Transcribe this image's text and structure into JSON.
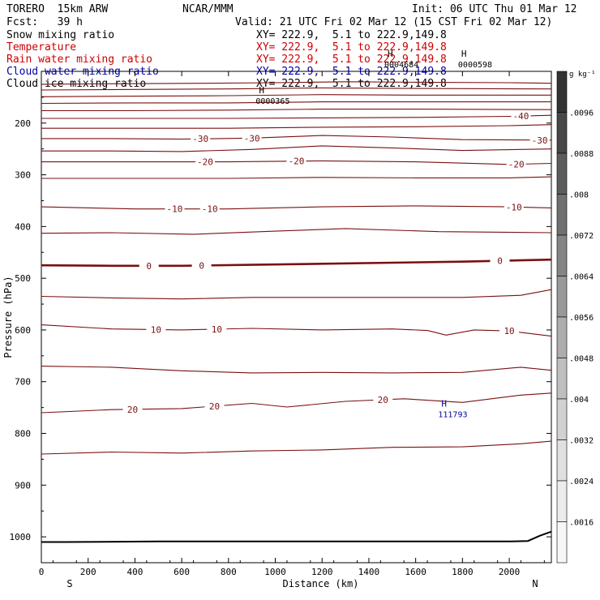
{
  "header": {
    "model": "TORERO  15km ARW",
    "org": "NCAR/MMM",
    "init": "Init: 06 UTC Thu 01 Mar 12",
    "fcst": "Fcst:   39 h",
    "valid": "Valid: 21 UTC Fri 02 Mar 12 (15 CST Fri 02 Mar 12)",
    "fields": [
      {
        "name": "Snow mixing ratio",
        "xy": "XY= 222.9,  5.1 to 222.9,149.8",
        "color": "#000000"
      },
      {
        "name": "Temperature",
        "xy": "XY= 222.9,  5.1 to 222.9,149.8",
        "color": "#cc0000"
      },
      {
        "name": "Rain water mixing ratio",
        "xy": "XY= 222.9,  5.1 to 222.9,149.8",
        "color": "#cc0000"
      },
      {
        "name": "Cloud water mixing ratio",
        "xy": "XY= 222.9,  5.1 to 222.9,149.8",
        "color": "#0000aa"
      },
      {
        "name": "Cloud ice mixing ratio",
        "xy": "XY= 222.9,  5.1 to 222.9,149.8",
        "color": "#000000"
      }
    ]
  },
  "chart_data": {
    "type": "line",
    "xlabel": "Distance (km)",
    "ylabel": "Pressure (hPa)",
    "xlim": [
      0,
      2180
    ],
    "ylim": [
      1050,
      100
    ],
    "x_ticks": [
      0,
      200,
      400,
      600,
      800,
      1000,
      1200,
      1400,
      1600,
      1800,
      2000
    ],
    "y_ticks": [
      200,
      300,
      400,
      500,
      600,
      700,
      800,
      900,
      1000
    ],
    "x_end_labels": {
      "left": "S",
      "right": "N"
    },
    "isotherm_color": "#7a1010",
    "zero_line_color": "#7a1010",
    "ground_color": "#000000",
    "contours": [
      {
        "level": "-40",
        "profile": [
          [
            0,
            125
          ],
          [
            300,
            124
          ],
          [
            700,
            123
          ],
          [
            1000,
            122
          ],
          [
            1300,
            120
          ],
          [
            1600,
            121
          ],
          [
            2000,
            122
          ],
          [
            2180,
            123
          ]
        ],
        "labels": []
      },
      {
        "level": "",
        "profile": [
          [
            0,
            136
          ],
          [
            400,
            135
          ],
          [
            800,
            134
          ],
          [
            1200,
            132
          ],
          [
            1600,
            133
          ],
          [
            2180,
            134
          ]
        ],
        "labels": []
      },
      {
        "level": "",
        "profile": [
          [
            0,
            149
          ],
          [
            400,
            148
          ],
          [
            800,
            147
          ],
          [
            1200,
            145
          ],
          [
            1600,
            146
          ],
          [
            2180,
            146
          ]
        ],
        "labels": []
      },
      {
        "level": "",
        "profile": [
          [
            0,
            162
          ],
          [
            400,
            161
          ],
          [
            800,
            161
          ],
          [
            1200,
            159
          ],
          [
            1600,
            159
          ],
          [
            2180,
            159
          ]
        ],
        "labels": []
      },
      {
        "level": "",
        "profile": [
          [
            0,
            176
          ],
          [
            400,
            176
          ],
          [
            800,
            175
          ],
          [
            1200,
            173
          ],
          [
            1600,
            173
          ],
          [
            2180,
            174
          ]
        ],
        "labels": []
      },
      {
        "level": "-40",
        "profile": [
          [
            0,
            191
          ],
          [
            400,
            191
          ],
          [
            800,
            191
          ],
          [
            1200,
            190
          ],
          [
            1600,
            189
          ],
          [
            2000,
            187
          ],
          [
            2180,
            185
          ]
        ],
        "labels": [
          [
            2050,
            188
          ]
        ]
      },
      {
        "level": "",
        "profile": [
          [
            0,
            210
          ],
          [
            400,
            210
          ],
          [
            800,
            210
          ],
          [
            1200,
            208
          ],
          [
            1600,
            207
          ],
          [
            2000,
            205
          ],
          [
            2180,
            203
          ]
        ],
        "labels": []
      },
      {
        "level": "-30",
        "profile": [
          [
            0,
            230
          ],
          [
            300,
            230
          ],
          [
            600,
            231
          ],
          [
            900,
            229
          ],
          [
            1200,
            224
          ],
          [
            1500,
            227
          ],
          [
            1800,
            232
          ],
          [
            2180,
            233
          ]
        ],
        "labels": [
          [
            680,
            230
          ],
          [
            900,
            229
          ],
          [
            2130,
            235
          ]
        ]
      },
      {
        "level": "",
        "profile": [
          [
            0,
            254
          ],
          [
            300,
            254
          ],
          [
            600,
            255
          ],
          [
            900,
            251
          ],
          [
            1200,
            244
          ],
          [
            1500,
            248
          ],
          [
            1800,
            253
          ],
          [
            2180,
            250
          ]
        ],
        "labels": []
      },
      {
        "level": "-20",
        "profile": [
          [
            0,
            275
          ],
          [
            400,
            275
          ],
          [
            800,
            275
          ],
          [
            1200,
            273
          ],
          [
            1600,
            275
          ],
          [
            2000,
            280
          ],
          [
            2180,
            278
          ]
        ],
        "labels": [
          [
            700,
            276
          ],
          [
            1090,
            276
          ],
          [
            2030,
            280
          ]
        ]
      },
      {
        "level": "",
        "profile": [
          [
            0,
            307
          ],
          [
            400,
            307
          ],
          [
            800,
            307
          ],
          [
            1200,
            305
          ],
          [
            1600,
            306
          ],
          [
            2000,
            306
          ],
          [
            2180,
            304
          ]
        ],
        "labels": []
      },
      {
        "level": "-10",
        "profile": [
          [
            0,
            362
          ],
          [
            400,
            366
          ],
          [
            800,
            366
          ],
          [
            1200,
            362
          ],
          [
            1600,
            360
          ],
          [
            2000,
            362
          ],
          [
            2180,
            364
          ]
        ],
        "labels": [
          [
            570,
            364
          ],
          [
            720,
            364
          ],
          [
            2020,
            363
          ]
        ]
      },
      {
        "level": "",
        "profile": [
          [
            0,
            413
          ],
          [
            300,
            412
          ],
          [
            650,
            415
          ],
          [
            1000,
            409
          ],
          [
            1300,
            404
          ],
          [
            1700,
            410
          ],
          [
            2180,
            412
          ]
        ],
        "labels": []
      },
      {
        "level": "0",
        "profile": [
          [
            0,
            475
          ],
          [
            300,
            476
          ],
          [
            600,
            476
          ],
          [
            900,
            474
          ],
          [
            1200,
            472
          ],
          [
            1500,
            470
          ],
          [
            1800,
            468
          ],
          [
            2180,
            464
          ]
        ],
        "labels": [
          [
            460,
            476
          ],
          [
            685,
            475
          ],
          [
            1960,
            468
          ]
        ]
      },
      {
        "level": "",
        "profile": [
          [
            0,
            535
          ],
          [
            300,
            538
          ],
          [
            600,
            540
          ],
          [
            900,
            537
          ],
          [
            1200,
            537
          ],
          [
            1500,
            537
          ],
          [
            1800,
            537
          ],
          [
            2050,
            533
          ],
          [
            2180,
            522
          ]
        ],
        "labels": []
      },
      {
        "level": "10",
        "profile": [
          [
            0,
            590
          ],
          [
            300,
            598
          ],
          [
            600,
            600
          ],
          [
            900,
            597
          ],
          [
            1200,
            600
          ],
          [
            1500,
            598
          ],
          [
            1650,
            601
          ],
          [
            1730,
            610
          ],
          [
            1850,
            600
          ],
          [
            2000,
            602
          ],
          [
            2180,
            612
          ]
        ],
        "labels": [
          [
            490,
            602
          ],
          [
            750,
            603
          ],
          [
            2000,
            604
          ]
        ]
      },
      {
        "level": "",
        "profile": [
          [
            0,
            670
          ],
          [
            300,
            672
          ],
          [
            600,
            679
          ],
          [
            900,
            683
          ],
          [
            1200,
            682
          ],
          [
            1500,
            683
          ],
          [
            1800,
            682
          ],
          [
            2050,
            672
          ],
          [
            2180,
            678
          ]
        ],
        "labels": []
      },
      {
        "level": "20",
        "profile": [
          [
            0,
            760
          ],
          [
            300,
            754
          ],
          [
            600,
            752
          ],
          [
            900,
            742
          ],
          [
            1050,
            749
          ],
          [
            1300,
            738
          ],
          [
            1550,
            733
          ],
          [
            1800,
            740
          ],
          [
            2050,
            726
          ],
          [
            2180,
            722
          ]
        ],
        "labels": [
          [
            390,
            753
          ],
          [
            740,
            752
          ],
          [
            1460,
            736
          ]
        ]
      },
      {
        "level": "",
        "profile": [
          [
            0,
            840
          ],
          [
            300,
            836
          ],
          [
            600,
            838
          ],
          [
            900,
            834
          ],
          [
            1200,
            832
          ],
          [
            1500,
            827
          ],
          [
            1800,
            826
          ],
          [
            2050,
            820
          ],
          [
            2180,
            815
          ]
        ],
        "labels": []
      }
    ],
    "ground_line": [
      [
        0,
        1010
      ],
      [
        100,
        1010
      ],
      [
        500,
        1009
      ],
      [
        1000,
        1009
      ],
      [
        1500,
        1009
      ],
      [
        2000,
        1009
      ],
      [
        2080,
        1008
      ],
      [
        2130,
        998
      ],
      [
        2180,
        990
      ]
    ],
    "maxima": [
      {
        "label": "H",
        "value": "0000365",
        "color": "#000000",
        "x": 930,
        "p": 142
      },
      {
        "label": "H",
        "value": "0004684",
        "color": "#000000",
        "x": 1480,
        "p": 72
      },
      {
        "label": "H",
        "value": "0000598",
        "color": "#000000",
        "x": 1795,
        "p": 72
      },
      {
        "label": "H",
        "value": "111793",
        "color": "#0000aa",
        "x": 1710,
        "p": 748
      }
    ],
    "colorbar": {
      "unit": "g kg⁻¹",
      "labels": [
        ".0096",
        ".0088",
        ".008",
        ".0072",
        ".0064",
        ".0056",
        ".0048",
        ".004",
        ".0032",
        ".0024",
        ".0016"
      ],
      "colors": [
        "#333333",
        "#474747",
        "#5c5c5c",
        "#707070",
        "#858585",
        "#999999",
        "#adadad",
        "#bfbfbf",
        "#d1d1d1",
        "#e0e0e0",
        "#ececec",
        "#f7f7f7"
      ]
    }
  }
}
